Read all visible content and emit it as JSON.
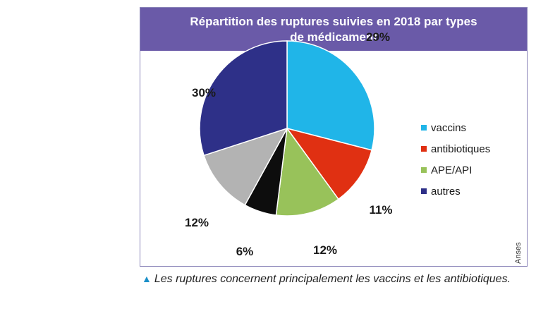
{
  "chart_data": {
    "type": "pie",
    "title_line1": "Répartition des ruptures suivies en 2018 par types",
    "title_line2": "de médicament",
    "slices": [
      {
        "key": "vaccins",
        "value": 29,
        "label": "29%",
        "color": "#20b5e8"
      },
      {
        "key": "antibiotiques",
        "value": 11,
        "label": "11%",
        "color": "#e03012"
      },
      {
        "key": "ape_api",
        "value": 12,
        "label": "12%",
        "color": "#98c25a"
      },
      {
        "key": "noir",
        "value": 6,
        "label": "6%",
        "color": "#0d0d0d"
      },
      {
        "key": "gris",
        "value": 12,
        "label": "12%",
        "color": "#b3b3b3"
      },
      {
        "key": "autres",
        "value": 30,
        "label": "30%",
        "color": "#2e3088"
      }
    ],
    "legend": [
      {
        "key": "vaccins",
        "label": "vaccins",
        "color": "#20b5e8"
      },
      {
        "key": "antibiotiques",
        "label": "antibiotiques",
        "color": "#e03012"
      },
      {
        "key": "ape_api",
        "label": "APE/API",
        "color": "#98c25a"
      },
      {
        "key": "autres",
        "label": "autres",
        "color": "#2e3088"
      }
    ],
    "legend_position": "right",
    "source": "Anses"
  },
  "caption": {
    "marker": "▲",
    "text": "Les ruptures concernent principalement les vaccins et les antibiotiques."
  }
}
